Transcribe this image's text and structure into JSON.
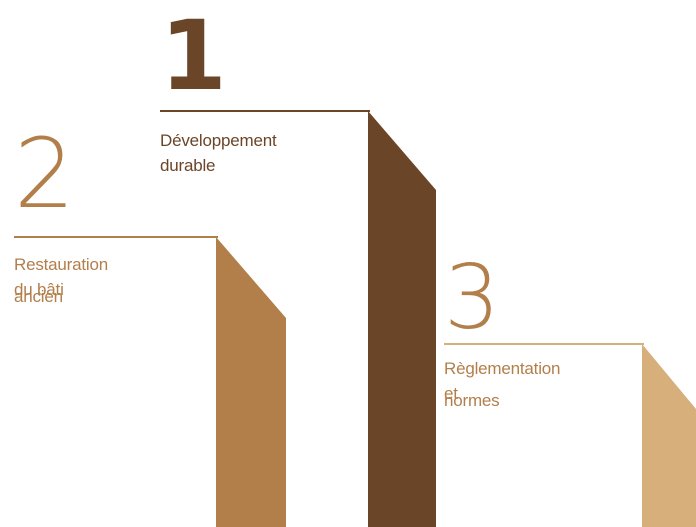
{
  "colors": {
    "dark_brown": "#6b4528",
    "medium_brown": "#b27f4b",
    "light_tan": "#d6af7b",
    "rule_dark": "#6b4528",
    "rule_medium": "#b27f4b",
    "rule_light": "#d6af7b"
  },
  "steps": [
    {
      "number": "1",
      "label": "Développement durable",
      "color": "#6b4528"
    },
    {
      "number": "2",
      "label_line1": "Restauration du bâti",
      "label_line2": "ancien",
      "color": "#b27f4b"
    },
    {
      "number": "3",
      "label_line1": "Règlementation et",
      "label_line2": "normes",
      "color": "#d6af7b"
    }
  ]
}
